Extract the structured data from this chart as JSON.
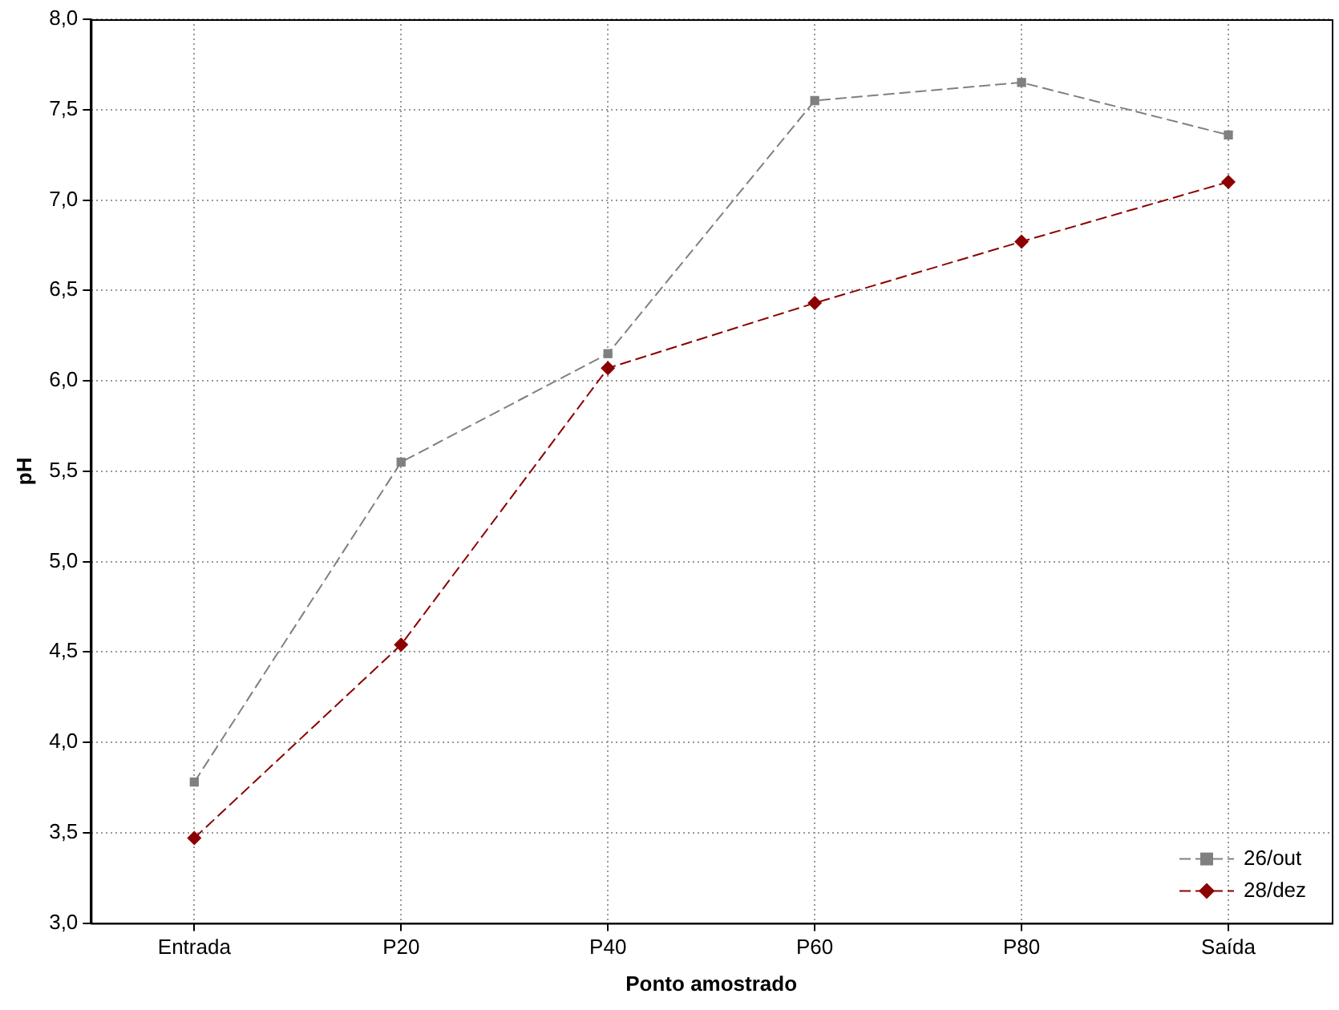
{
  "chart_data": {
    "type": "line",
    "xlabel": "Ponto amostrado",
    "ylabel": "pH",
    "categories": [
      "Entrada",
      "P20",
      "P40",
      "P60",
      "P80",
      "Saída"
    ],
    "series": [
      {
        "name": "26/out",
        "color": "#808080",
        "marker": "square",
        "line_style": "dashed",
        "values": [
          3.78,
          5.55,
          6.15,
          7.55,
          7.65,
          7.36
        ]
      },
      {
        "name": "28/dez",
        "color": "#8b0000",
        "marker": "diamond",
        "line_style": "dashed",
        "values": [
          3.47,
          4.54,
          6.07,
          6.43,
          6.77,
          7.1
        ]
      }
    ],
    "ylim": [
      3,
      8
    ],
    "yticks": [
      {
        "value": 3,
        "label": "3,0"
      },
      {
        "value": 3.5,
        "label": "3,5"
      },
      {
        "value": 4,
        "label": "4,0"
      },
      {
        "value": 4.5,
        "label": "4,5"
      },
      {
        "value": 5,
        "label": "5,0"
      },
      {
        "value": 5.5,
        "label": "5,5"
      },
      {
        "value": 6,
        "label": "6,0"
      },
      {
        "value": 6.5,
        "label": "6,5"
      },
      {
        "value": 7,
        "label": "7,0"
      },
      {
        "value": 7.5,
        "label": "7,5"
      },
      {
        "value": 8,
        "label": "8,0"
      }
    ],
    "grid": true,
    "legend": "bottom right"
  }
}
